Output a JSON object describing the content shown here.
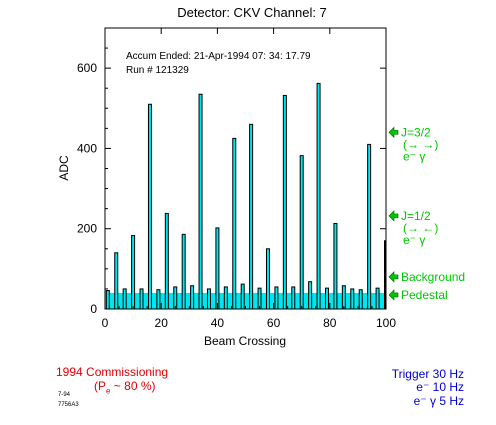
{
  "chart_data": {
    "type": "bar",
    "title": "Detector: CKV Channel: 7",
    "xlabel": "Beam Crossing",
    "ylabel": "ADC",
    "xlim": [
      0,
      100
    ],
    "ylim": [
      0,
      700
    ],
    "x_ticks": [
      "0",
      "20",
      "40",
      "60",
      "80",
      "100"
    ],
    "y_ticks": [
      "0",
      "200",
      "400",
      "600"
    ],
    "annotation_line1": "Accum Ended: 21-Apr-1994  07: 34: 17.79",
    "annotation_line2": "Run # 121329",
    "pedestal_level": 40,
    "bar_color": "#00e5ee",
    "bars": [
      {
        "x": 1,
        "value": 46
      },
      {
        "x": 4,
        "value": 140
      },
      {
        "x": 7,
        "value": 50
      },
      {
        "x": 10,
        "value": 183
      },
      {
        "x": 13,
        "value": 50
      },
      {
        "x": 16,
        "value": 510
      },
      {
        "x": 19,
        "value": 48
      },
      {
        "x": 22,
        "value": 238
      },
      {
        "x": 25,
        "value": 55
      },
      {
        "x": 28,
        "value": 186
      },
      {
        "x": 31,
        "value": 58
      },
      {
        "x": 34,
        "value": 535
      },
      {
        "x": 37,
        "value": 50
      },
      {
        "x": 40,
        "value": 202
      },
      {
        "x": 43,
        "value": 55
      },
      {
        "x": 46,
        "value": 425
      },
      {
        "x": 49,
        "value": 62
      },
      {
        "x": 52,
        "value": 460
      },
      {
        "x": 55,
        "value": 52
      },
      {
        "x": 58,
        "value": 150
      },
      {
        "x": 61,
        "value": 55
      },
      {
        "x": 64,
        "value": 532
      },
      {
        "x": 67,
        "value": 55
      },
      {
        "x": 70,
        "value": 382
      },
      {
        "x": 73,
        "value": 68
      },
      {
        "x": 76,
        "value": 562
      },
      {
        "x": 79,
        "value": 52
      },
      {
        "x": 82,
        "value": 213
      },
      {
        "x": 85,
        "value": 58
      },
      {
        "x": 88,
        "value": 50
      },
      {
        "x": 91,
        "value": 48
      },
      {
        "x": 94,
        "value": 410
      },
      {
        "x": 97,
        "value": 52
      },
      {
        "x": 100,
        "value": 170
      }
    ],
    "markers": [
      {
        "value": 440,
        "line1": "J=3/2",
        "line2": "(→  →)",
        "line3": "e⁻   γ"
      },
      {
        "value": 232,
        "line1": "J=1/2",
        "line2": "(→  ←)",
        "line3": "e⁻   γ"
      },
      {
        "value": 80,
        "line1": "Background"
      },
      {
        "value": 35,
        "line1": "Pedestal"
      }
    ],
    "marker_color": "#00c800"
  },
  "footer": {
    "commissioning": "1994 Commissioning",
    "polarization": "(P",
    "polarization_sub": "e",
    "polarization_rest": "~ 80 %)",
    "small_code_1": "7-94",
    "small_code_2": "7756A3",
    "trigger_line1": "Trigger 30 Hz",
    "trigger_line2": "e⁻  10 Hz",
    "trigger_line3": "e⁻ γ   5 Hz"
  }
}
